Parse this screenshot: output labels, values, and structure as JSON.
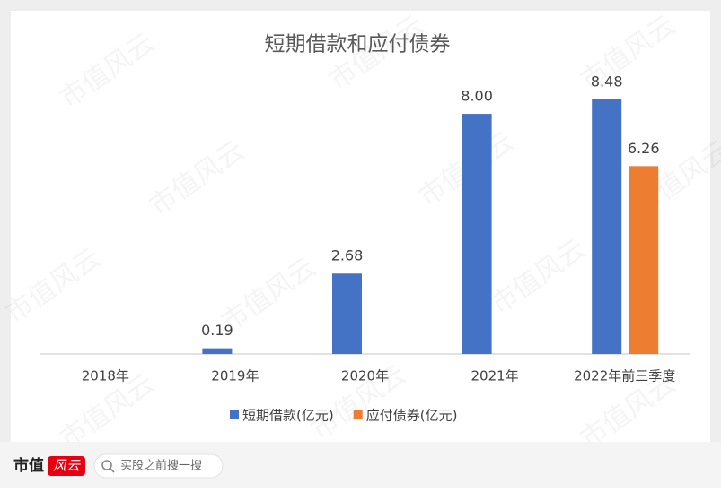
{
  "chart_data": {
    "type": "bar",
    "title": "短期借款和应付债券",
    "categories": [
      "2018年",
      "2019年",
      "2020年",
      "2021年",
      "2022年前三季度"
    ],
    "series": [
      {
        "name": "短期借款(亿元)",
        "color": "#4472c4",
        "values": [
          null,
          0.19,
          2.68,
          8,
          8.48
        ],
        "value_labels": [
          null,
          "0.19",
          "2.68",
          "8.00",
          "8.48"
        ]
      },
      {
        "name": "应付债券(亿元)",
        "color": "#ed7d31",
        "values": [
          null,
          null,
          null,
          null,
          6.26
        ]
      }
    ],
    "legend": "bottom"
  },
  "watermark": "市值风云",
  "footer": {
    "brand": "市值",
    "brand_mark": "风云",
    "search": "买股之前搜一搜"
  }
}
